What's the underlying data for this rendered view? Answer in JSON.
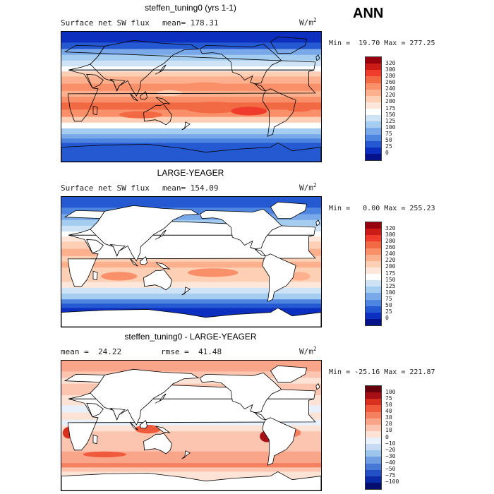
{
  "season": "ANN",
  "panels": [
    {
      "id": "model",
      "title": "steffen_tuning0 (yrs 1-1)",
      "subtitle_left": "Surface net SW flux",
      "subtitle_right": "mean= 178.31",
      "units": "W/m",
      "units_exp": "2",
      "minmax": "Min =  19.70 Max = 277.25",
      "colorbar_labels": [
        "320",
        "300",
        "280",
        "260",
        "240",
        "220",
        "200",
        "175",
        "150",
        "125",
        "100",
        "75",
        "50",
        "25",
        "0"
      ],
      "colors": [
        "#99000d",
        "#cb1b16",
        "#ef3c2d",
        "#f26a44",
        "#f9906a",
        "#fcb08e",
        "#fdd0b6",
        "#fde7da",
        "#ffffff",
        "#cfe3f6",
        "#a5cdf0",
        "#7aa9ea",
        "#4d85e0",
        "#2559d2",
        "#0d2fbf",
        "#06128a"
      ],
      "land_white": false
    },
    {
      "id": "obs",
      "title": "LARGE-YEAGER",
      "subtitle_left": "Surface net SW flux",
      "subtitle_right": "mean= 154.09",
      "units": "W/m",
      "units_exp": "2",
      "minmax": "Min =   0.00 Max = 255.23",
      "colorbar_labels": [
        "320",
        "300",
        "280",
        "260",
        "240",
        "220",
        "200",
        "175",
        "150",
        "125",
        "100",
        "75",
        "50",
        "25",
        "0"
      ],
      "colors": [
        "#99000d",
        "#cb1b16",
        "#ef3c2d",
        "#f26a44",
        "#f9906a",
        "#fcb08e",
        "#fdd0b6",
        "#fde7da",
        "#ffffff",
        "#cfe3f6",
        "#a5cdf0",
        "#7aa9ea",
        "#4d85e0",
        "#2559d2",
        "#0d2fbf",
        "#06128a"
      ],
      "land_white": true
    },
    {
      "id": "diff",
      "title": "steffen_tuning0 - LARGE-YEAGER",
      "subtitle_left": "mean =  24.22",
      "subtitle_right": "rmse =  41.48",
      "units": "W/m",
      "units_exp": "2",
      "minmax": "Min = -25.16 Max = 221.87",
      "colorbar_labels": [
        "100",
        "75",
        "50",
        "40",
        "30",
        "20",
        "10",
        "0",
        "−10",
        "−20",
        "−30",
        "−40",
        "−50",
        "−75",
        "−100"
      ],
      "colors": [
        "#67000d",
        "#a50f15",
        "#d7301f",
        "#ef5a3c",
        "#f4805f",
        "#f9a58a",
        "#fcc5b0",
        "#fde3d6",
        "#e8f1fb",
        "#c6dbf3",
        "#9ec5ec",
        "#6f9fe2",
        "#4778d6",
        "#2350c4",
        "#0a2aa8",
        "#040e6e"
      ],
      "land_white": true
    }
  ],
  "chart_data": [
    {
      "type": "heatmap",
      "title": "steffen_tuning0 (yrs 1-1)",
      "subtitle": "Surface net SW flux",
      "mean": 178.31,
      "min": 19.7,
      "max": 277.25,
      "units": "W/m^2",
      "levels": [
        0,
        25,
        50,
        75,
        100,
        125,
        150,
        175,
        200,
        220,
        240,
        260,
        280,
        300,
        320
      ],
      "x_range": [
        0,
        360
      ],
      "y_range": [
        -90,
        90
      ]
    },
    {
      "type": "heatmap",
      "title": "LARGE-YEAGER",
      "subtitle": "Surface net SW flux",
      "mean": 154.09,
      "min": 0.0,
      "max": 255.23,
      "units": "W/m^2",
      "levels": [
        0,
        25,
        50,
        75,
        100,
        125,
        150,
        175,
        200,
        220,
        240,
        260,
        280,
        300,
        320
      ],
      "x_range": [
        0,
        360
      ],
      "y_range": [
        -90,
        90
      ]
    },
    {
      "type": "heatmap",
      "title": "steffen_tuning0 - LARGE-YEAGER",
      "mean": 24.22,
      "rmse": 41.48,
      "min": -25.16,
      "max": 221.87,
      "units": "W/m^2",
      "levels": [
        -100,
        -75,
        -50,
        -40,
        -30,
        -20,
        -10,
        0,
        10,
        20,
        30,
        40,
        50,
        75,
        100
      ],
      "x_range": [
        0,
        360
      ],
      "y_range": [
        -90,
        90
      ]
    }
  ]
}
